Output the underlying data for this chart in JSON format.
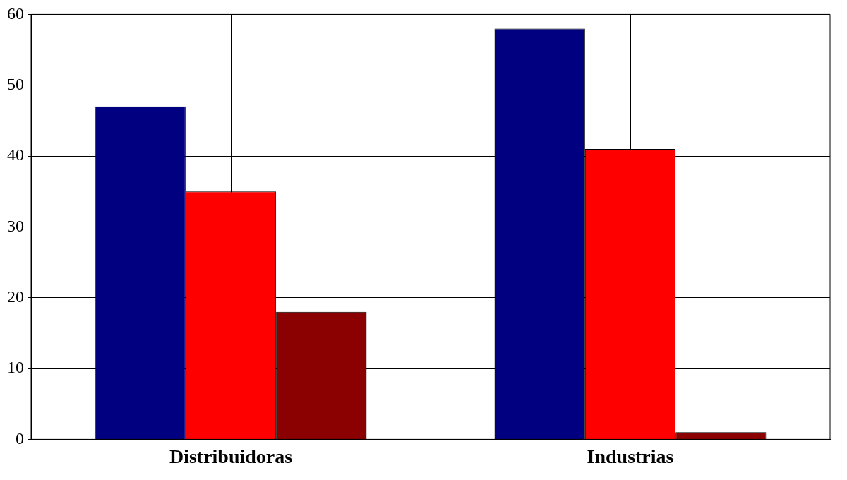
{
  "chart_data": {
    "type": "bar",
    "categories": [
      "Distribuidoras",
      "Industrias"
    ],
    "series": [
      {
        "color": "#000080",
        "values": [
          47,
          58
        ]
      },
      {
        "color": "#ff0000",
        "values": [
          35,
          41
        ]
      },
      {
        "color": "#8b0000",
        "values": [
          18,
          1
        ]
      }
    ],
    "ylim": [
      0,
      60
    ],
    "yticks": [
      0,
      10,
      20,
      30,
      40,
      50,
      60
    ],
    "grid": true,
    "legend": false
  }
}
